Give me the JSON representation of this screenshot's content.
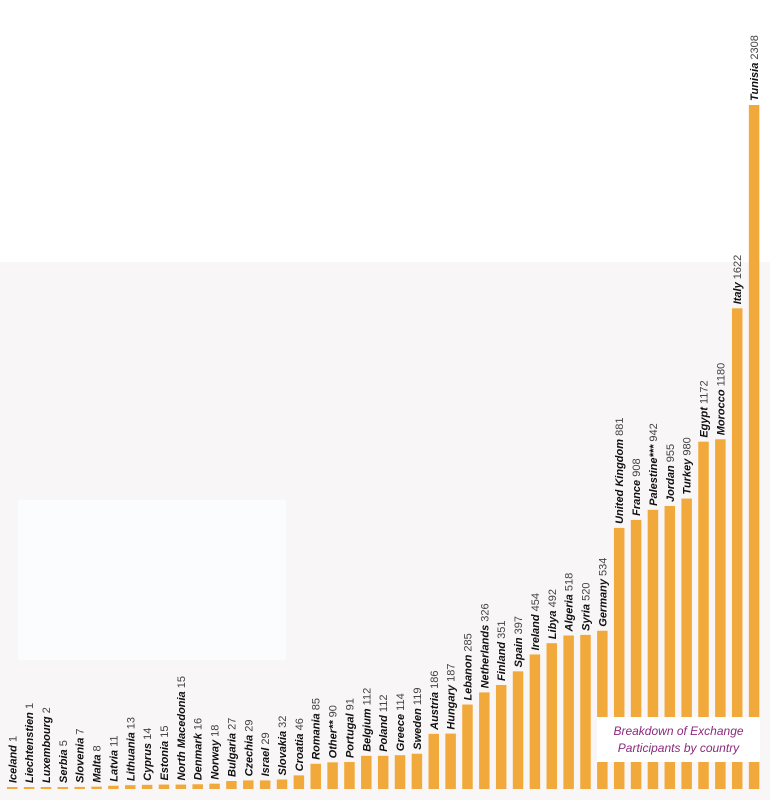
{
  "colors": {
    "bar": "#f2a93b",
    "panel": "#f8f6f6",
    "title": "#8a2a7c"
  },
  "title": "Breakdown of Exchange\nParticipants by country",
  "chart_data": {
    "type": "bar",
    "orientation": "vertical",
    "categories": [
      "Iceland",
      "Liechtenstien",
      "Luxembourg",
      "Serbia",
      "Slovenia",
      "Malta",
      "Latvia",
      "Lithuania",
      "Cyprus",
      "Estonia",
      "North Macedonia",
      "Denmark",
      "Norway",
      "Bulgaria",
      "Czechia",
      "Israel",
      "Slovakia",
      "Croatia",
      "Romania",
      "Other**",
      "Portugal",
      "Belgium",
      "Poland",
      "Greece",
      "Sweden",
      "Austria",
      "Hungary",
      "Lebanon",
      "Netherlands",
      "Finland",
      "Spain",
      "Ireland",
      "Libya",
      "Algeria",
      "Syria",
      "Germany",
      "United Kingdom",
      "France",
      "Palestine***",
      "Jordan",
      "Turkey",
      "Egypt",
      "Morocco",
      "Italy",
      "Tunisia"
    ],
    "values": [
      1,
      1,
      2,
      5,
      7,
      8,
      11,
      13,
      14,
      15,
      15,
      16,
      18,
      27,
      29,
      29,
      32,
      46,
      85,
      90,
      91,
      112,
      112,
      114,
      119,
      186,
      187,
      285,
      326,
      351,
      397,
      454,
      492,
      518,
      520,
      534,
      881,
      908,
      942,
      955,
      980,
      1172,
      1180,
      1622,
      2308
    ],
    "value_labels": [
      "1",
      "1",
      "2",
      "5",
      "7",
      "8",
      "11",
      "13",
      "14",
      "15",
      "15",
      "16",
      "18",
      "27",
      "29",
      "29",
      "32",
      "46",
      "85",
      "90",
      "91",
      "112",
      "112",
      "114",
      "119",
      "186",
      "187",
      "285",
      "326",
      "351",
      "397",
      "454",
      "492",
      "518",
      "520",
      "534",
      "881",
      "908",
      "942",
      "955",
      "980",
      "1172",
      "1180",
      "1622",
      "2308"
    ],
    "title": "Breakdown of Exchange Participants by country",
    "xlabel": "",
    "ylabel": "",
    "ylim": [
      0,
      2308
    ],
    "grid": false,
    "legend": "bottom-right"
  }
}
